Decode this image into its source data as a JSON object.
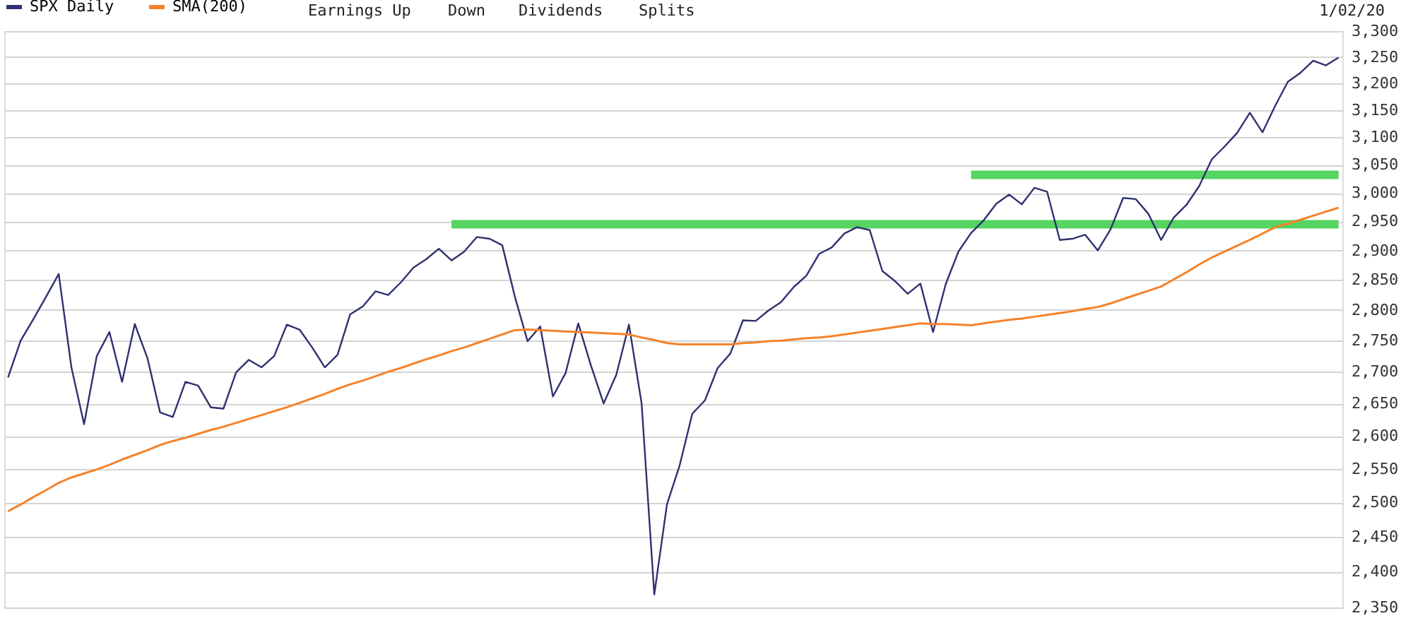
{
  "chart_data": {
    "type": "line",
    "categories": [
      null,
      null,
      null,
      null,
      null,
      null,
      null,
      null,
      null,
      null,
      null,
      null,
      null,
      null,
      null,
      null,
      null,
      null,
      null,
      null,
      null,
      null,
      null,
      null,
      null,
      null,
      null,
      null,
      null,
      null,
      null,
      null,
      null,
      null,
      null,
      null,
      null,
      null,
      null,
      null,
      null,
      null,
      null,
      null,
      null,
      null,
      null,
      null,
      null,
      null,
      null,
      null,
      null,
      null,
      null,
      null,
      null,
      null,
      null,
      null,
      null,
      null,
      null,
      null,
      null,
      null,
      null,
      null,
      null,
      null,
      null,
      null,
      null,
      null,
      null,
      null,
      null,
      null,
      null,
      null,
      null,
      null,
      null,
      null,
      null,
      null,
      null,
      null,
      null,
      null,
      null,
      null,
      null,
      null,
      null,
      null,
      null,
      null,
      null,
      null,
      null,
      null,
      null,
      null,
      null,
      null
    ],
    "ylim": [
      2350,
      3300
    ],
    "yticks": [
      {
        "value": 2350,
        "label": "2,350"
      },
      {
        "value": 2400,
        "label": "2,400"
      },
      {
        "value": 2450,
        "label": "2,450"
      },
      {
        "value": 2500,
        "label": "2,500"
      },
      {
        "value": 2550,
        "label": "2,550"
      },
      {
        "value": 2600,
        "label": "2,600"
      },
      {
        "value": 2650,
        "label": "2,650"
      },
      {
        "value": 2700,
        "label": "2,700"
      },
      {
        "value": 2750,
        "label": "2,750"
      },
      {
        "value": 2800,
        "label": "2,800"
      },
      {
        "value": 2850,
        "label": "2,850"
      },
      {
        "value": 2900,
        "label": "2,900"
      },
      {
        "value": 2950,
        "label": "2,950"
      },
      {
        "value": 3000,
        "label": "3,000"
      },
      {
        "value": 3050,
        "label": "3,050"
      },
      {
        "value": 3100,
        "label": "3,100"
      },
      {
        "value": 3150,
        "label": "3,150"
      },
      {
        "value": 3200,
        "label": "3,200"
      },
      {
        "value": 3250,
        "label": "3,250"
      },
      {
        "value": 3300,
        "label": "3,300"
      }
    ],
    "log": true,
    "grid": "y",
    "tick_labels": "y",
    "legend": "top left",
    "annotations": [
      "Earnings Up",
      "Down",
      "Dividends",
      "Splits",
      "1/02/20"
    ],
    "series": [
      {
        "name": "SPX Daily",
        "color": "#2e3170",
        "values": [
          2691,
          2750,
          2785,
          2822,
          2860,
          2707,
          2618,
          2725,
          2764,
          2684,
          2777,
          2722,
          2636,
          2629,
          2684,
          2678,
          2644,
          2642,
          2699,
          2719,
          2707,
          2725,
          2776,
          2768,
          2739,
          2707,
          2727,
          2793,
          2806,
          2831,
          2825,
          2846,
          2871,
          2885,
          2903,
          2883,
          2898,
          2923,
          2920,
          2909,
          2822,
          2749,
          2773,
          2661,
          2698,
          2778,
          2710,
          2650,
          2695,
          2776,
          2650,
          2368,
          2497,
          2555,
          2634,
          2655,
          2706,
          2729,
          2783,
          2782,
          2799,
          2813,
          2838,
          2857,
          2894,
          2905,
          2929,
          2940,
          2935,
          2865,
          2848,
          2827,
          2844,
          2764,
          2843,
          2898,
          2930,
          2952,
          2981,
          2997,
          2980,
          3009,
          3002,
          2918,
          2920,
          2927,
          2900,
          2936,
          2991,
          2989,
          2963,
          2918,
          2957,
          2979,
          3012,
          3060,
          3083,
          3108,
          3145,
          3109,
          3158,
          3203,
          3220,
          3243,
          3234,
          3249
        ]
      },
      {
        "name": "SMA(200)",
        "color": "#f5822a",
        "values": [
          2487,
          2497,
          2508,
          2518,
          2529,
          2537,
          2543,
          2549,
          2556,
          2564,
          2571,
          2578,
          2586,
          2592,
          2597,
          2603,
          2609,
          2614,
          2620,
          2626,
          2632,
          2638,
          2644,
          2651,
          2658,
          2665,
          2673,
          2680,
          2686,
          2693,
          2700,
          2706,
          2713,
          2720,
          2726,
          2733,
          2739,
          2746,
          2753,
          2760,
          2767,
          2768,
          2767,
          2766,
          2765,
          2764,
          2763,
          2762,
          2761,
          2760,
          2755,
          2751,
          2746,
          2744,
          2744,
          2744,
          2744,
          2744,
          2746,
          2747,
          2749,
          2750,
          2752,
          2754,
          2755,
          2757,
          2760,
          2763,
          2766,
          2769,
          2772,
          2775,
          2778,
          2777,
          2777,
          2776,
          2775,
          2778,
          2781,
          2784,
          2786,
          2789,
          2792,
          2795,
          2798,
          2802,
          2805,
          2811,
          2818,
          2825,
          2832,
          2839,
          2851,
          2863,
          2876,
          2888,
          2898,
          2908,
          2918,
          2929,
          2940,
          2946,
          2953,
          2960,
          2967,
          2974
        ]
      },
      {
        "color": "#55d462",
        "values": [
          null,
          null,
          null,
          null,
          null,
          null,
          null,
          null,
          null,
          null,
          null,
          null,
          null,
          null,
          null,
          null,
          null,
          null,
          null,
          null,
          null,
          null,
          null,
          null,
          null,
          null,
          null,
          null,
          null,
          null,
          null,
          null,
          null,
          null,
          null,
          2945,
          2945,
          2945,
          2945,
          2945,
          2945,
          2945,
          2945,
          2945,
          2945,
          2945,
          2945,
          2945,
          2945,
          2945,
          2945,
          2945,
          2945,
          2945,
          2945,
          2945,
          2945,
          2945,
          2945,
          2945,
          2945,
          2945,
          2945,
          2945,
          2945,
          2945,
          2945,
          2945,
          2945,
          2945,
          2945,
          2945,
          2945,
          2945,
          2945,
          2945,
          2945,
          2945,
          2945,
          2945,
          2945,
          2945,
          2945,
          2945,
          2945,
          2945,
          2945,
          2945,
          2945,
          2945,
          2945,
          2945,
          2945,
          2945,
          2945,
          2945,
          2945,
          2945,
          2945,
          2945,
          2945,
          2945,
          2945,
          2945,
          2945,
          2945
        ]
      },
      {
        "color": "#55d462",
        "values": [
          null,
          null,
          null,
          null,
          null,
          null,
          null,
          null,
          null,
          null,
          null,
          null,
          null,
          null,
          null,
          null,
          null,
          null,
          null,
          null,
          null,
          null,
          null,
          null,
          null,
          null,
          null,
          null,
          null,
          null,
          null,
          null,
          null,
          null,
          null,
          null,
          null,
          null,
          null,
          null,
          null,
          null,
          null,
          null,
          null,
          null,
          null,
          null,
          null,
          null,
          null,
          null,
          null,
          null,
          null,
          null,
          null,
          null,
          null,
          null,
          null,
          null,
          null,
          null,
          null,
          null,
          null,
          null,
          null,
          null,
          null,
          null,
          null,
          null,
          null,
          null,
          3032,
          3032,
          3032,
          3032,
          3032,
          3032,
          3032,
          3032,
          3032,
          3032,
          3032,
          3032,
          3032,
          3032,
          3032,
          3032,
          3032,
          3032,
          3032,
          3032,
          3032,
          3032,
          3032,
          3032,
          3032,
          3032,
          3032,
          3032,
          3032,
          3032
        ]
      }
    ]
  }
}
